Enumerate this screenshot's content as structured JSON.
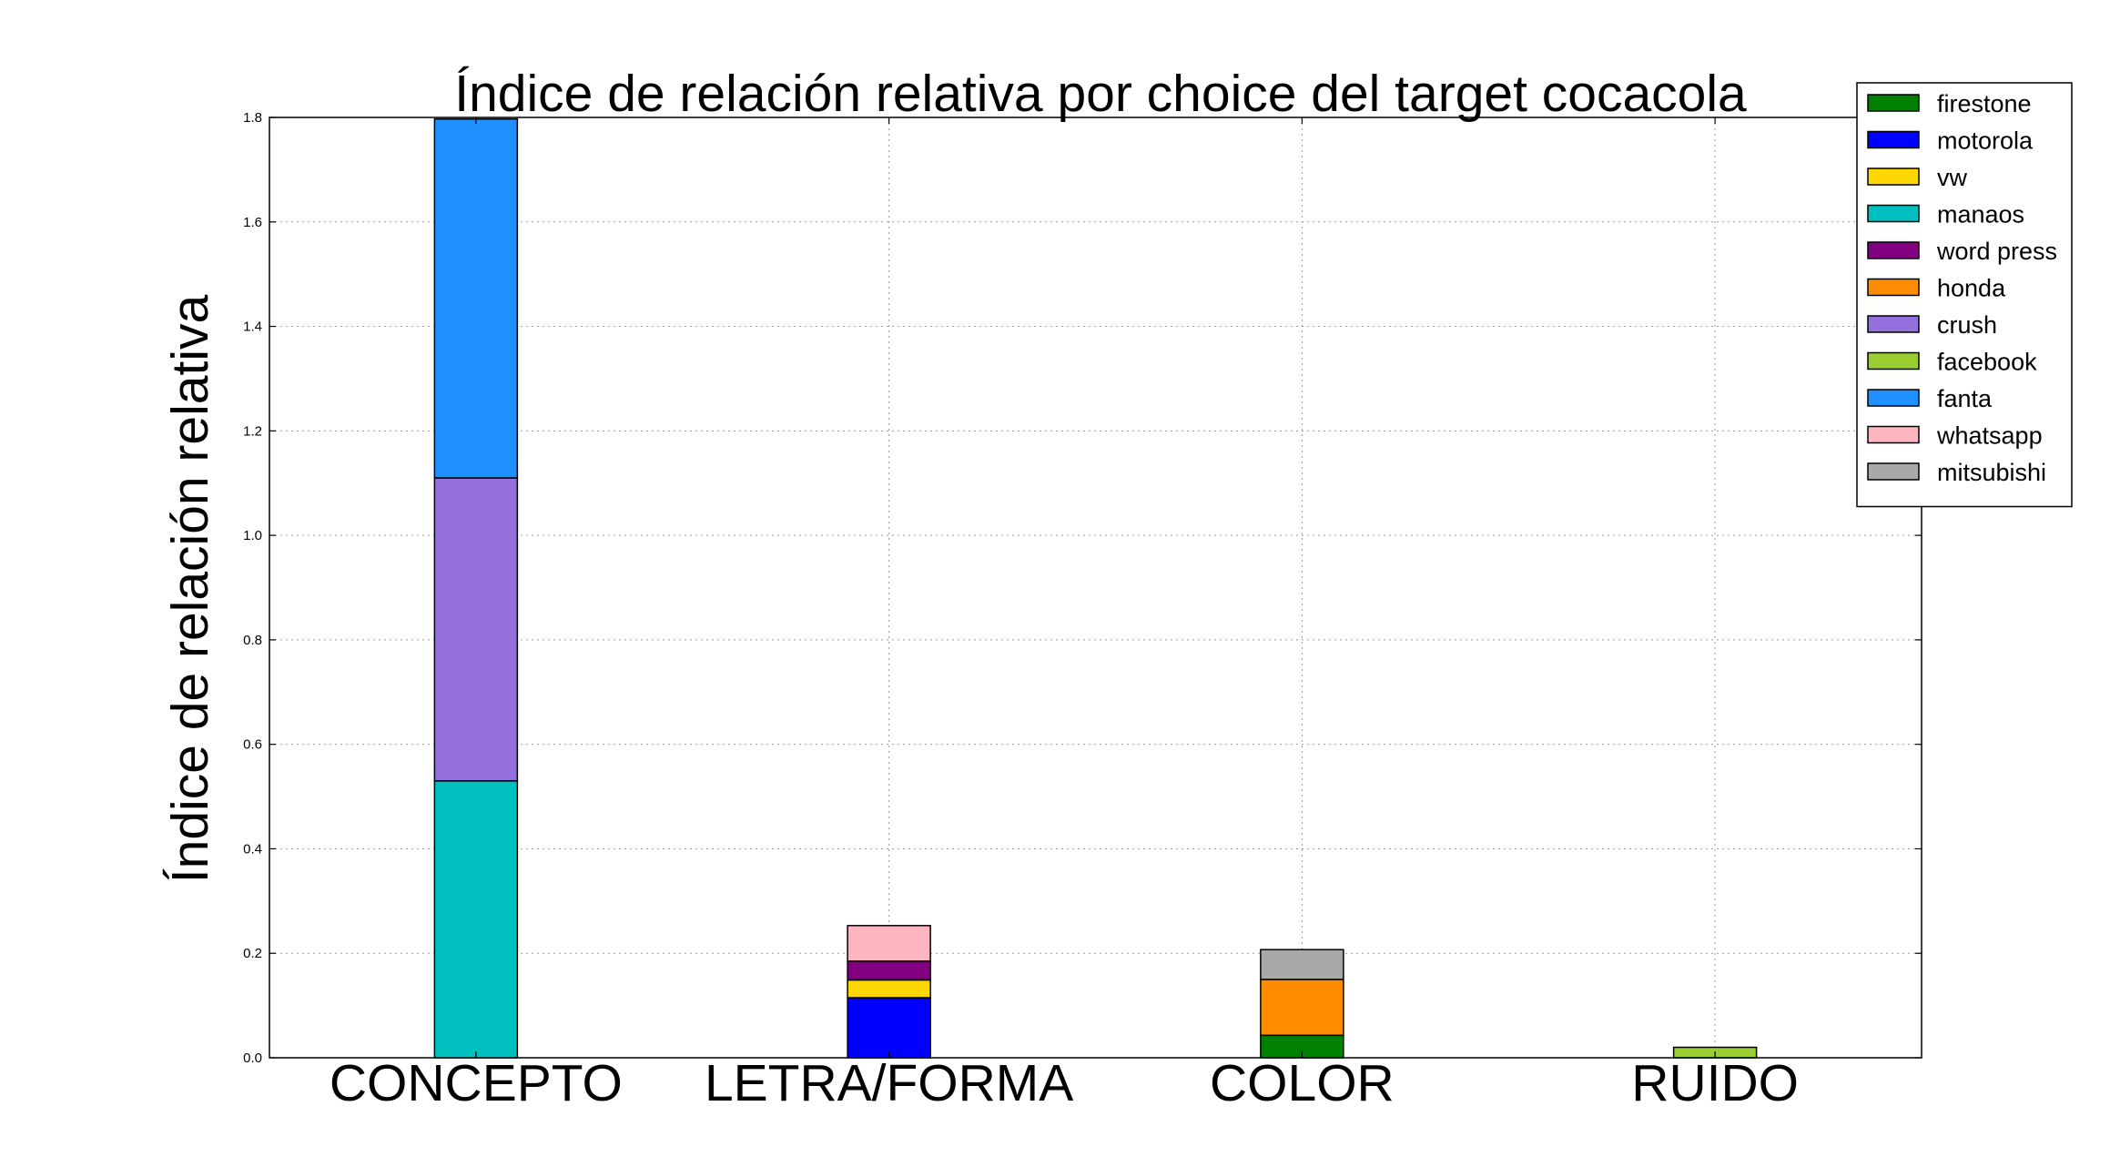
{
  "chart_data": {
    "type": "bar",
    "stacked": true,
    "title": "Índice de relación relativa por choice del target cocacola",
    "xlabel": "",
    "ylabel": "Índice de relación relativa",
    "categories": [
      "CONCEPTO",
      "LETRA/FORMA",
      "COLOR",
      "RUIDO"
    ],
    "ylim": [
      0,
      1.8
    ],
    "yticks": [
      "0.0",
      "0.2",
      "0.4",
      "0.6",
      "0.8",
      "1.0",
      "1.2",
      "1.4",
      "1.6",
      "1.8"
    ],
    "grid": true,
    "legend_position": "top-right",
    "series": [
      {
        "name": "firestone",
        "color": "#008000",
        "values": [
          0,
          0,
          0.043,
          0
        ]
      },
      {
        "name": "motorola",
        "color": "#0000FF",
        "values": [
          0,
          0.115,
          0,
          0
        ]
      },
      {
        "name": "vw",
        "color": "#FFD700",
        "values": [
          0,
          0.034,
          0,
          0
        ]
      },
      {
        "name": "manaos",
        "color": "#00BFBF",
        "values": [
          0.53,
          0,
          0,
          0
        ]
      },
      {
        "name": "word press",
        "color": "#800080",
        "values": [
          0,
          0.036,
          0,
          0
        ]
      },
      {
        "name": "honda",
        "color": "#FF8C00",
        "values": [
          0,
          0,
          0.107,
          0
        ]
      },
      {
        "name": "crush",
        "color": "#9370DB",
        "values": [
          0.58,
          0,
          0,
          0
        ]
      },
      {
        "name": "facebook",
        "color": "#9ACD32",
        "values": [
          0,
          0,
          0,
          0.02
        ]
      },
      {
        "name": "fanta",
        "color": "#1E90FF",
        "values": [
          0.687,
          0,
          0,
          0
        ]
      },
      {
        "name": "whatsapp",
        "color": "#FFB6C1",
        "values": [
          0,
          0.068,
          0,
          0
        ]
      },
      {
        "name": "mitsubishi",
        "color": "#A9A9A9",
        "values": [
          0,
          0,
          0.057,
          0
        ]
      }
    ]
  }
}
